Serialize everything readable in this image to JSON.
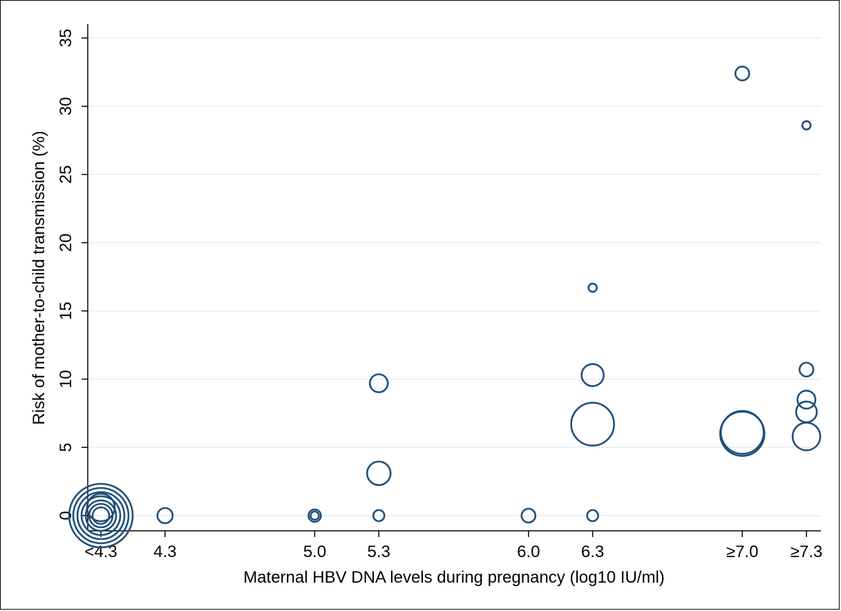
{
  "chart_data": {
    "type": "scatter",
    "title": "",
    "xlabel": "Maternal HBV DNA levels during pregnancy (log10 IU/ml)",
    "ylabel": "Risk of mother-to-child transmission (%)",
    "ylim": [
      0,
      35
    ],
    "yticks": [
      0,
      5,
      10,
      15,
      20,
      25,
      30,
      35
    ],
    "xticks": [
      {
        "value": 4.0,
        "label": "<4.3"
      },
      {
        "value": 4.3,
        "label": "4.3"
      },
      {
        "value": 5.0,
        "label": "5.0"
      },
      {
        "value": 5.3,
        "label": "5.3"
      },
      {
        "value": 6.0,
        "label": "6.0"
      },
      {
        "value": 6.3,
        "label": "6.3"
      },
      {
        "value": 7.0,
        "label": "≥7.0"
      },
      {
        "value": 7.3,
        "label": "≥7.3"
      }
    ],
    "xlim": [
      3.94,
      7.35
    ],
    "grid": true,
    "marker": "hollow circle, size proportional to study weight",
    "color": "#1f4e79",
    "points": [
      {
        "x": 4.0,
        "y": 0,
        "size": 46
      },
      {
        "x": 4.0,
        "y": 0,
        "size": 40
      },
      {
        "x": 4.0,
        "y": 0,
        "size": 34
      },
      {
        "x": 4.0,
        "y": 0,
        "size": 28
      },
      {
        "x": 4.0,
        "y": 0,
        "size": 22
      },
      {
        "x": 4.0,
        "y": 0,
        "size": 17
      },
      {
        "x": 4.0,
        "y": 0.6,
        "size": 20
      },
      {
        "x": 4.0,
        "y": 0,
        "size": 12
      },
      {
        "x": 4.3,
        "y": 0,
        "size": 11
      },
      {
        "x": 5.0,
        "y": 0,
        "size": 9
      },
      {
        "x": 5.0,
        "y": 0,
        "size": 6
      },
      {
        "x": 5.3,
        "y": 9.7,
        "size": 13
      },
      {
        "x": 5.3,
        "y": 3.1,
        "size": 17
      },
      {
        "x": 5.3,
        "y": 0,
        "size": 8
      },
      {
        "x": 6.0,
        "y": 0,
        "size": 10
      },
      {
        "x": 6.3,
        "y": 16.7,
        "size": 6
      },
      {
        "x": 6.3,
        "y": 10.3,
        "size": 16
      },
      {
        "x": 6.3,
        "y": 6.7,
        "size": 31
      },
      {
        "x": 6.3,
        "y": 0,
        "size": 8
      },
      {
        "x": 7.0,
        "y": 32.4,
        "size": 10
      },
      {
        "x": 7.0,
        "y": 6.0,
        "size": 32
      },
      {
        "x": 7.0,
        "y": 6.1,
        "size": 31
      },
      {
        "x": 7.3,
        "y": 28.6,
        "size": 6
      },
      {
        "x": 7.3,
        "y": 10.7,
        "size": 10
      },
      {
        "x": 7.3,
        "y": 8.5,
        "size": 13
      },
      {
        "x": 7.3,
        "y": 7.6,
        "size": 15
      },
      {
        "x": 7.3,
        "y": 5.8,
        "size": 20
      }
    ]
  }
}
